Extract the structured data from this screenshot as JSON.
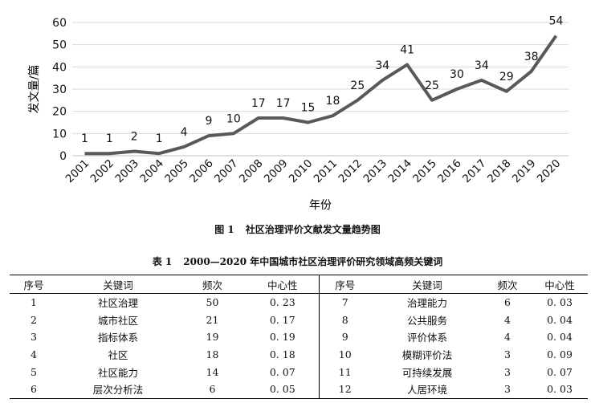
{
  "chart_data": {
    "type": "line",
    "x": [
      "2001",
      "2002",
      "2003",
      "2004",
      "2005",
      "2006",
      "2007",
      "2008",
      "2009",
      "2010",
      "2011",
      "2012",
      "2013",
      "2014",
      "2015",
      "2016",
      "2017",
      "2018",
      "2019",
      "2020"
    ],
    "values": [
      1,
      1,
      2,
      1,
      4,
      9,
      10,
      17,
      17,
      15,
      18,
      25,
      34,
      41,
      25,
      30,
      34,
      29,
      38,
      54
    ],
    "xlabel": "年份",
    "ylabel": "发文量/篇",
    "ylim": [
      0,
      60
    ],
    "yticks": [
      0,
      10,
      20,
      30,
      40,
      50,
      60
    ],
    "grid": true,
    "line_color": "#595959",
    "grid_color": "#d9d9d9"
  },
  "figure_caption": {
    "label": "图 1",
    "text": "社区治理评价文献发文量趋势图"
  },
  "table": {
    "caption_label": "表 1",
    "caption_text": "2000—2020 年中国城市社区治理评价研究领域高频关键词",
    "headers": [
      "序号",
      "关键词",
      "频次",
      "中心性",
      "序号",
      "关键词",
      "频次",
      "中心性"
    ],
    "rows": [
      [
        "1",
        "社区治理",
        "50",
        "0. 23",
        "7",
        "治理能力",
        "6",
        "0. 03"
      ],
      [
        "2",
        "城市社区",
        "21",
        "0. 17",
        "8",
        "公共服务",
        "4",
        "0. 04"
      ],
      [
        "3",
        "指标体系",
        "19",
        "0. 19",
        "9",
        "评价体系",
        "4",
        "0. 04"
      ],
      [
        "4",
        "社区",
        "18",
        "0. 18",
        "10",
        "模糊评价法",
        "3",
        "0. 09"
      ],
      [
        "5",
        "社区能力",
        "14",
        "0. 07",
        "11",
        "可持续发展",
        "3",
        "0. 07"
      ],
      [
        "6",
        "层次分析法",
        "6",
        "0. 05",
        "12",
        "人居环境",
        "3",
        "0. 03"
      ]
    ]
  }
}
